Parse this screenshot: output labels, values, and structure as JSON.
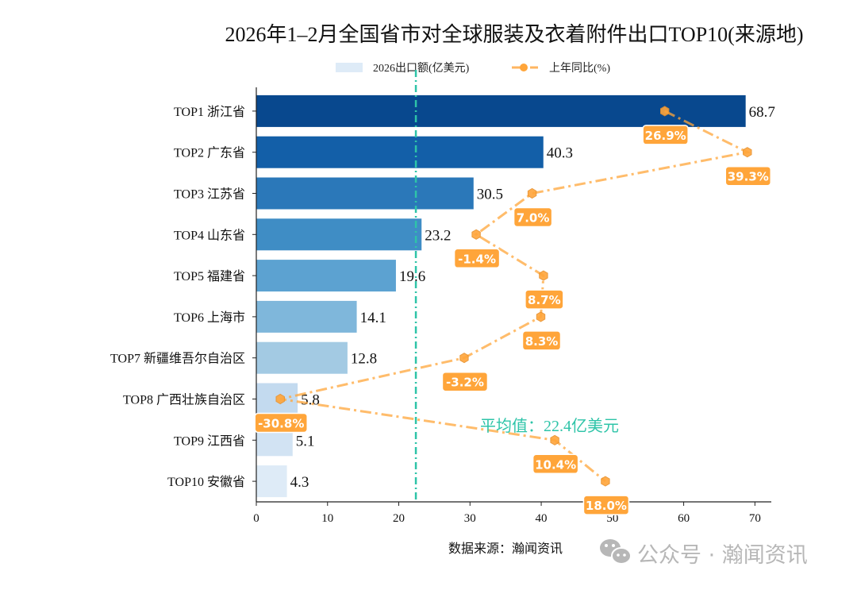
{
  "chart_data": {
    "type": "bar",
    "orientation": "horizontal",
    "title": "2026年1–2月全国省市对全球服装及衣着附件出口TOP10(来源地)",
    "categories": [
      "TOP1 浙江省",
      "TOP2 广东省",
      "TOP3 江苏省",
      "TOP4 山东省",
      "TOP5 福建省",
      "TOP6 上海市",
      "TOP7 新疆维吾尔自治区",
      "TOP8 广西壮族自治区",
      "TOP9 江西省",
      "TOP10 安徽省"
    ],
    "series": [
      {
        "name": "2026出口额(亿美元)",
        "type": "bar",
        "values": [
          68.7,
          40.3,
          30.5,
          23.2,
          19.6,
          14.1,
          12.8,
          5.8,
          5.1,
          4.3
        ],
        "colors": [
          "#08488e",
          "#135fa8",
          "#2b78b9",
          "#3f8dc5",
          "#5ca2d1",
          "#7fb7db",
          "#a3cae3",
          "#c3daef",
          "#d2e3f3",
          "#deebf7"
        ]
      },
      {
        "name": "上年同比(%)",
        "type": "line",
        "values": [
          26.9,
          39.3,
          7.0,
          -1.4,
          8.7,
          8.3,
          -3.2,
          -30.8,
          10.4,
          18.0
        ],
        "labels": [
          "26.9%",
          "39.3%",
          "7.0%",
          "-1.4%",
          "8.7%",
          "8.3%",
          "-3.2%",
          "-30.8%",
          "10.4%",
          "18.0%"
        ],
        "color": "#ffa53a",
        "axis_range": [
          -34.4,
          42.9
        ],
        "axis_visible": false
      }
    ],
    "xlim": [
      0,
      72.3
    ],
    "xticks": [
      "0",
      "10",
      "20",
      "30",
      "40",
      "50",
      "60",
      "70"
    ],
    "average": {
      "value": 22.4,
      "label": "平均值：22.4亿美元",
      "color": "#2ec4a8"
    },
    "grid": false,
    "legend_position": "top-center",
    "source": "数据来源：瀚闻资讯"
  },
  "watermark": "公众号 · 瀚闻资讯"
}
